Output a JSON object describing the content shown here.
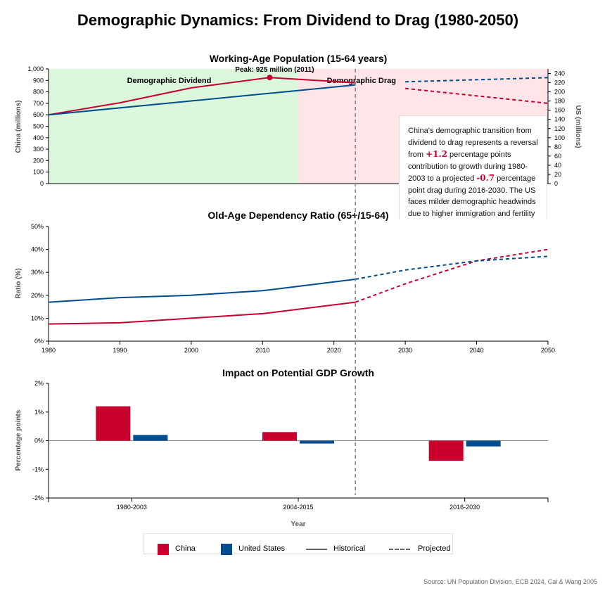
{
  "title": "Demographic Dynamics: From Dividend to Drag (1980-2050)",
  "colors": {
    "china": "#c8002d",
    "us": "#004c8c",
    "dividend_bg": "#dcf8dc",
    "drag_bg": "#ffe4e8",
    "divider": "#888888"
  },
  "annotation": {
    "part1": "China's demographic transition from dividend to drag represents a reversal from ",
    "value1": "+1.2",
    "part2": " percentage points contribution to growth during 1980-2003 to a projected ",
    "value2": "-0.7",
    "part3": " percentage point drag during 2016-2030. The US faces milder demographic headwinds due to higher immigration and fertility rates."
  },
  "legend": {
    "china": "China",
    "us": "United States",
    "historical": "Historical",
    "projected": "Projected"
  },
  "source": "Source: UN Population Division, ECB 2024, Cai & Wang 2005",
  "chart_data": [
    {
      "type": "line",
      "title": "Working-Age Population (15-64 years)",
      "ylabel": "China (millions)",
      "y2label": "US (millions)",
      "ylim": [
        0,
        1000
      ],
      "y2lim": [
        0,
        250
      ],
      "yticks": [
        0,
        100,
        200,
        300,
        400,
        500,
        600,
        700,
        800,
        900,
        1000
      ],
      "y2ticks": [
        0,
        20,
        40,
        60,
        80,
        100,
        120,
        140,
        160,
        180,
        200,
        220,
        240
      ],
      "xlim": [
        1980,
        2050
      ],
      "regions": [
        {
          "label": "Demographic Dividend",
          "from": 1980,
          "to": 2015
        },
        {
          "label": "Demographic Drag",
          "from": 2015,
          "to": 2050
        }
      ],
      "peak_annotation": {
        "x": 2011,
        "y": 925,
        "label": "Peak: 925 million (2011)"
      },
      "projection_start": 2023,
      "series": [
        {
          "name": "China",
          "axis": "left",
          "historical": {
            "x": [
              1980,
              1990,
              2000,
              2011,
              2023
            ],
            "y": [
              600,
              705,
              835,
              925,
              880
            ]
          },
          "projected": {
            "x": [
              2030,
              2050
            ],
            "y": [
              830,
              700
            ]
          }
        },
        {
          "name": "United States",
          "axis": "right",
          "historical": {
            "x": [
              1980,
              2023
            ],
            "y": [
              150,
              215
            ]
          },
          "projected": {
            "x": [
              2030,
              2050
            ],
            "y": [
              222,
              231
            ]
          }
        }
      ]
    },
    {
      "type": "line",
      "title": "Old-Age Dependency Ratio (65+/15-64)",
      "ylabel": "Ratio (%)",
      "ylim": [
        0,
        50
      ],
      "yticks": [
        "0%",
        "10%",
        "20%",
        "30%",
        "40%",
        "50%"
      ],
      "xlim": [
        1980,
        2050
      ],
      "xticks": [
        1980,
        1990,
        2000,
        2010,
        2020,
        2030,
        2040,
        2050
      ],
      "projection_start": 2023,
      "series": [
        {
          "name": "China",
          "historical": {
            "x": [
              1980,
              1990,
              2000,
              2010,
              2023
            ],
            "y": [
              7.5,
              8,
              10,
              12,
              17
            ]
          },
          "projected": {
            "x": [
              2023,
              2030,
              2040,
              2050
            ],
            "y": [
              17,
              25,
              35,
              40
            ]
          }
        },
        {
          "name": "United States",
          "historical": {
            "x": [
              1980,
              1990,
              2000,
              2010,
              2023
            ],
            "y": [
              17,
              19,
              20,
              22,
              27
            ]
          },
          "projected": {
            "x": [
              2023,
              2030,
              2040,
              2050
            ],
            "y": [
              27,
              31,
              35,
              37
            ]
          }
        }
      ]
    },
    {
      "type": "bar",
      "title": "Impact on Potential GDP Growth",
      "ylabel": "Percentage points",
      "xlabel": "Year",
      "ylim": [
        -2,
        2
      ],
      "yticks": [
        "-2%",
        "-1%",
        "0%",
        "1%",
        "2%"
      ],
      "categories": [
        "1980-2003",
        "2004-2015",
        "2016-2030"
      ],
      "series": [
        {
          "name": "China",
          "values": [
            1.2,
            0.3,
            -0.7
          ]
        },
        {
          "name": "United States",
          "values": [
            0.2,
            -0.1,
            -0.2
          ]
        }
      ]
    }
  ]
}
